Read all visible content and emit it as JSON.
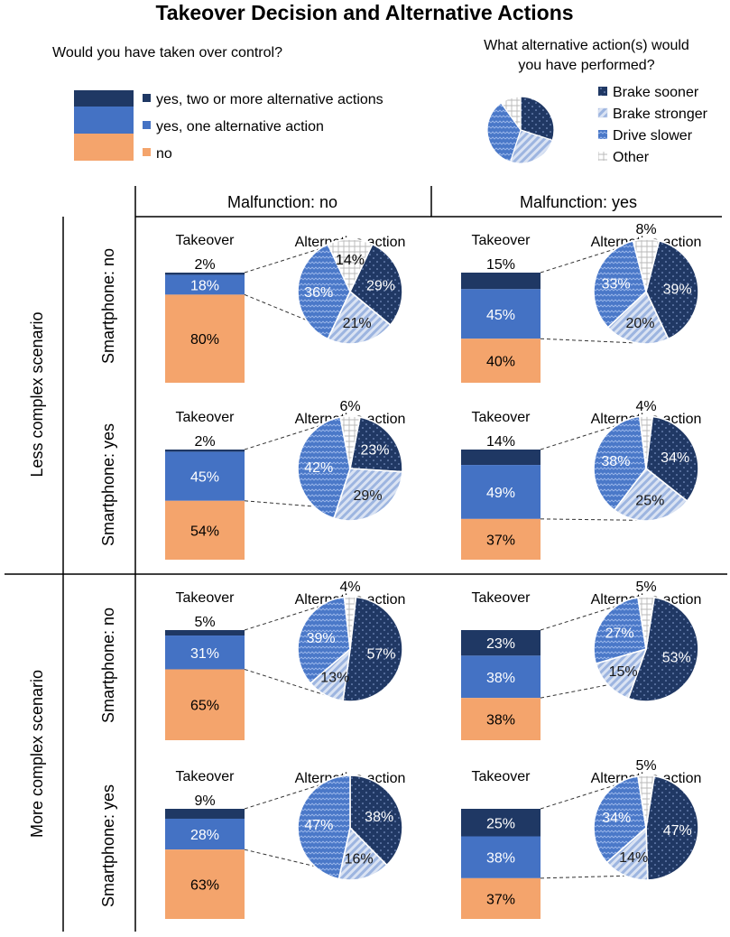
{
  "chart_data": {
    "type": "composite-bar-of-pie",
    "title": "Takeover Decision and Alternative Actions",
    "takeover_question": "Would you have taken over control?",
    "action_question_line1": "What alternative action(s) would",
    "action_question_line2": "you have performed?",
    "takeover_legend": [
      {
        "key": "two",
        "label": "yes, two or more alternative actions",
        "color": "#1f3864"
      },
      {
        "key": "one",
        "label": "yes, one alternative action",
        "color": "#4472c4"
      },
      {
        "key": "no",
        "label": "no",
        "color": "#f4a46c"
      }
    ],
    "action_legend": [
      {
        "key": "brake_sooner",
        "label": "Brake sooner",
        "color": "#203864"
      },
      {
        "key": "brake_stronger",
        "label": "Brake stronger",
        "color": "#b4c7e7"
      },
      {
        "key": "drive_slower",
        "label": "Drive slower",
        "color": "#4a78c8"
      },
      {
        "key": "other",
        "label": "Other",
        "color": "#ffffff"
      }
    ],
    "legend_pie": [
      30,
      25,
      35,
      10
    ],
    "columns": [
      "Malfunction: no",
      "Malfunction: yes"
    ],
    "scenarios": [
      "Less complex scenario",
      "More complex scenario"
    ],
    "rows": [
      "Smartphone: no",
      "Smartphone: yes",
      "Smartphone: no",
      "Smartphone: yes"
    ],
    "bar_label": "Takeover",
    "pie_label": "Alternative action",
    "panels": [
      {
        "row": 0,
        "col": 0,
        "takeover": {
          "two": 2,
          "one": 18,
          "no": 80
        },
        "actions": {
          "brake_sooner": 29,
          "brake_stronger": 21,
          "drive_slower": 36,
          "other": 14
        }
      },
      {
        "row": 0,
        "col": 1,
        "takeover": {
          "two": 15,
          "one": 45,
          "no": 40
        },
        "actions": {
          "brake_sooner": 39,
          "brake_stronger": 20,
          "drive_slower": 33,
          "other": 8
        }
      },
      {
        "row": 1,
        "col": 0,
        "takeover": {
          "two": 2,
          "one": 45,
          "no": 54
        },
        "actions": {
          "brake_sooner": 23,
          "brake_stronger": 29,
          "drive_slower": 42,
          "other": 6
        }
      },
      {
        "row": 1,
        "col": 1,
        "takeover": {
          "two": 14,
          "one": 49,
          "no": 37
        },
        "actions": {
          "brake_sooner": 34,
          "brake_stronger": 25,
          "drive_slower": 38,
          "other": 4
        }
      },
      {
        "row": 2,
        "col": 0,
        "takeover": {
          "two": 5,
          "one": 31,
          "no": 65
        },
        "actions": {
          "brake_sooner": 57,
          "brake_stronger": 13,
          "drive_slower": 39,
          "other": 4
        }
      },
      {
        "row": 2,
        "col": 1,
        "takeover": {
          "two": 23,
          "one": 38,
          "no": 38
        },
        "actions": {
          "brake_sooner": 53,
          "brake_stronger": 15,
          "drive_slower": 27,
          "other": 5
        }
      },
      {
        "row": 3,
        "col": 0,
        "takeover": {
          "two": 9,
          "one": 28,
          "no": 63
        },
        "actions": {
          "brake_sooner": 38,
          "brake_stronger": 16,
          "drive_slower": 47,
          "other": 0
        }
      },
      {
        "row": 3,
        "col": 1,
        "takeover": {
          "two": 25,
          "one": 38,
          "no": 37
        },
        "actions": {
          "brake_sooner": 47,
          "brake_stronger": 14,
          "drive_slower": 34,
          "other": 5
        }
      }
    ]
  }
}
